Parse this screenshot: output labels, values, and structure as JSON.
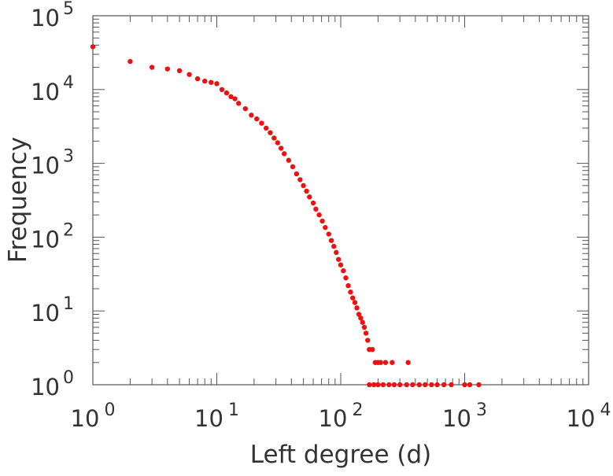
{
  "chart_data": {
    "type": "scatter",
    "title": "",
    "xlabel": "Left degree (d)",
    "ylabel": "Frequency",
    "xscale": "log",
    "yscale": "log",
    "xlim": [
      1,
      10000
    ],
    "ylim": [
      1,
      100000
    ],
    "grid": false,
    "marker_color": "#ee1111",
    "x_ticks": [
      {
        "base": "10",
        "exp": "0"
      },
      {
        "base": "10",
        "exp": "1"
      },
      {
        "base": "10",
        "exp": "2"
      },
      {
        "base": "10",
        "exp": "3"
      },
      {
        "base": "10",
        "exp": "4"
      }
    ],
    "y_ticks": [
      {
        "base": "10",
        "exp": "0"
      },
      {
        "base": "10",
        "exp": "1"
      },
      {
        "base": "10",
        "exp": "2"
      },
      {
        "base": "10",
        "exp": "3"
      },
      {
        "base": "10",
        "exp": "4"
      },
      {
        "base": "10",
        "exp": "5"
      }
    ],
    "series": [
      {
        "points": [
          [
            1,
            38000
          ],
          [
            2,
            24000
          ],
          [
            3,
            20000
          ],
          [
            4,
            19000
          ],
          [
            5,
            18000
          ],
          [
            6,
            16000
          ],
          [
            7,
            14000
          ],
          [
            8,
            13000
          ],
          [
            9,
            12500
          ],
          [
            10,
            12000
          ],
          [
            11,
            10000
          ],
          [
            12,
            9000
          ],
          [
            13,
            8000
          ],
          [
            14,
            7500
          ],
          [
            15,
            6500
          ],
          [
            17,
            5500
          ],
          [
            19,
            4500
          ],
          [
            21,
            4000
          ],
          [
            23,
            3500
          ],
          [
            25,
            3000
          ],
          [
            27,
            2600
          ],
          [
            29,
            2200
          ],
          [
            31,
            1900
          ],
          [
            33,
            1600
          ],
          [
            35,
            1350
          ],
          [
            38,
            1100
          ],
          [
            41,
            900
          ],
          [
            44,
            720
          ],
          [
            47,
            600
          ],
          [
            50,
            500
          ],
          [
            53,
            420
          ],
          [
            56,
            350
          ],
          [
            60,
            290
          ],
          [
            63,
            240
          ],
          [
            67,
            200
          ],
          [
            71,
            165
          ],
          [
            75,
            135
          ],
          [
            80,
            110
          ],
          [
            84,
            90
          ],
          [
            88,
            75
          ],
          [
            92,
            62
          ],
          [
            96,
            50
          ],
          [
            100,
            42
          ],
          [
            105,
            35
          ],
          [
            110,
            28
          ],
          [
            115,
            22
          ],
          [
            120,
            18
          ],
          [
            125,
            15
          ],
          [
            130,
            13
          ],
          [
            135,
            11
          ],
          [
            140,
            9
          ],
          [
            145,
            8
          ],
          [
            150,
            7
          ],
          [
            155,
            6
          ],
          [
            160,
            5
          ],
          [
            165,
            4
          ],
          [
            170,
            3
          ],
          [
            180,
            3
          ],
          [
            190,
            2
          ],
          [
            200,
            2
          ],
          [
            210,
            2
          ],
          [
            230,
            2
          ],
          [
            260,
            2
          ],
          [
            350,
            2
          ],
          [
            170,
            1
          ],
          [
            185,
            1
          ],
          [
            200,
            1
          ],
          [
            220,
            1
          ],
          [
            245,
            1
          ],
          [
            270,
            1
          ],
          [
            300,
            1
          ],
          [
            340,
            1
          ],
          [
            380,
            1
          ],
          [
            430,
            1
          ],
          [
            480,
            1
          ],
          [
            540,
            1
          ],
          [
            600,
            1
          ],
          [
            680,
            1
          ],
          [
            780,
            1
          ],
          [
            1000,
            1
          ],
          [
            1100,
            1
          ],
          [
            1300,
            1
          ]
        ]
      }
    ]
  }
}
